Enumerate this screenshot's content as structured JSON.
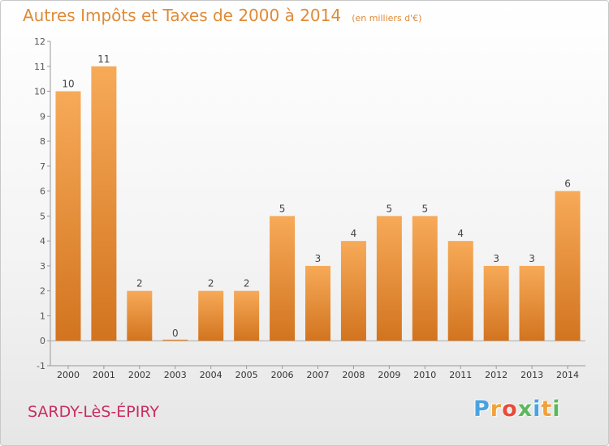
{
  "page": {
    "town": "SARDY-LèS-ÉPIRY",
    "brand": [
      "P",
      "r",
      "o",
      "x",
      "i",
      "t",
      "i"
    ],
    "brand_colors": [
      "#4aa3df",
      "#f2a13a",
      "#e84b3c",
      "#5cb85c",
      "#4aa3df",
      "#f2a13a",
      "#5cb85c"
    ]
  },
  "chart_data": {
    "type": "bar",
    "title": "Autres Impôts et Taxes de 2000 à 2014",
    "subtitle": "(en milliers d'€)",
    "categories": [
      "2000",
      "2001",
      "2002",
      "2003",
      "2004",
      "2005",
      "2006",
      "2007",
      "2008",
      "2009",
      "2010",
      "2011",
      "2012",
      "2013",
      "2014"
    ],
    "values": [
      10,
      11,
      2,
      0,
      2,
      2,
      5,
      3,
      4,
      5,
      5,
      4,
      3,
      3,
      6
    ],
    "ylim": [
      -1,
      12
    ],
    "yticks": [
      "-1",
      "0",
      "1",
      "2",
      "3",
      "4",
      "5",
      "6",
      "7",
      "8",
      "9",
      "10",
      "11",
      "12"
    ],
    "grid": false,
    "bar_color": "#f0923a",
    "title_color": "#e08a37"
  }
}
